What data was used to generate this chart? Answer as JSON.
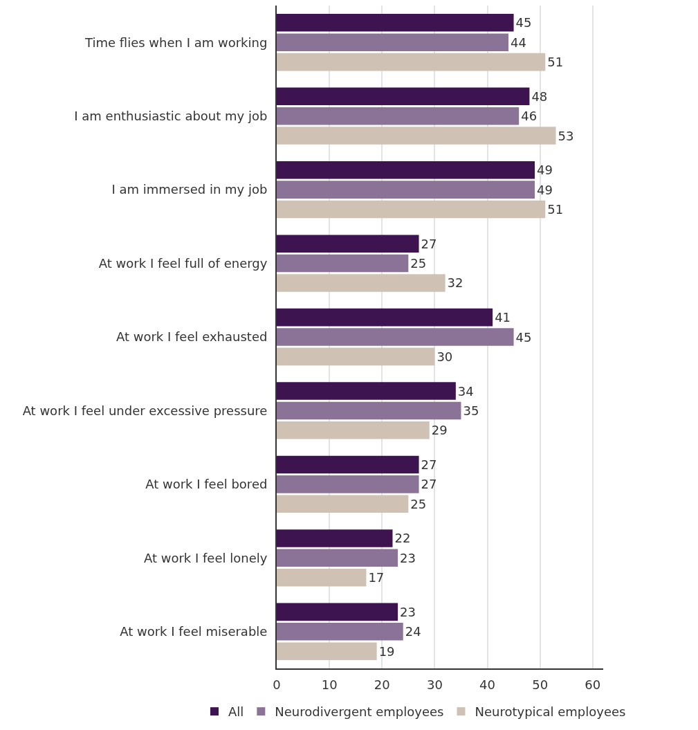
{
  "chart_data": {
    "type": "bar",
    "orientation": "horizontal",
    "categories": [
      "Time flies when I am working",
      "I am enthusiastic about my job",
      "I am immersed in my job",
      "At work I feel full of energy",
      "At work I feel exhausted",
      "At work I feel under excessive pressure",
      "At work I feel bored",
      "At work I feel lonely",
      "At work I feel miserable"
    ],
    "series": [
      {
        "name": "All",
        "color": "#3d1350",
        "values": [
          45,
          48,
          49,
          27,
          41,
          34,
          27,
          22,
          23
        ]
      },
      {
        "name": "Neurodivergent employees",
        "color": "#8b7297",
        "values": [
          44,
          46,
          49,
          25,
          45,
          35,
          27,
          23,
          24
        ]
      },
      {
        "name": "Neurotypical employees",
        "color": "#cfc1b4",
        "values": [
          51,
          53,
          51,
          32,
          30,
          29,
          25,
          17,
          19
        ]
      }
    ],
    "xlim": [
      0,
      62
    ],
    "xticks": [
      0,
      10,
      20,
      30,
      40,
      50,
      60
    ],
    "grid": "x",
    "legend": "bottom",
    "data_labels": true
  }
}
